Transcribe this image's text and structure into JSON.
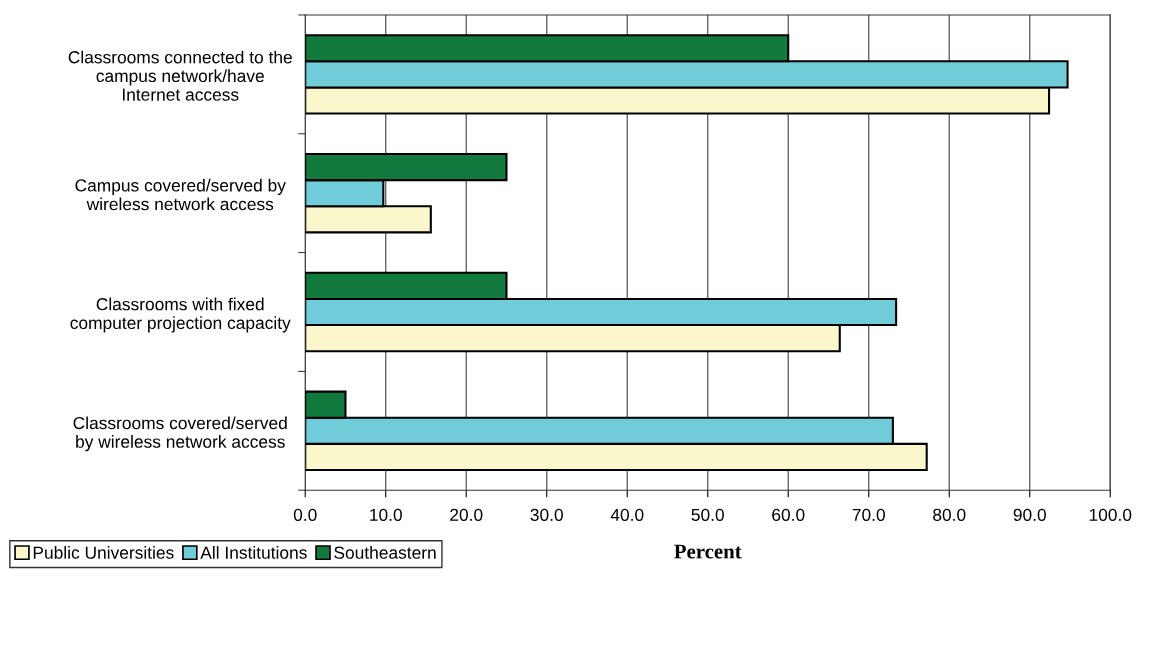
{
  "chart_data": {
    "type": "bar",
    "orientation": "horizontal",
    "categories": [
      "Classrooms connected to the\ncampus network/have\nInternet access",
      "Campus covered/served by\nwireless network access",
      "Classrooms with fixed\ncomputer projection capacity",
      "Classrooms covered/served\nby wireless network access"
    ],
    "series": [
      {
        "name": "Public Universities",
        "color": "#fbf7cc",
        "values": [
          92.4,
          15.6,
          66.4,
          77.2
        ]
      },
      {
        "name": "All Institutions",
        "color": "#70ccd9",
        "values": [
          94.7,
          9.7,
          73.4,
          73.0
        ]
      },
      {
        "name": "Southeastern",
        "color": "#137a3e",
        "values": [
          60,
          25,
          25,
          5
        ]
      }
    ],
    "xlabel": "Percent",
    "xlim": [
      0,
      100
    ],
    "xticks": [
      {
        "value": 0,
        "label": "0.0"
      },
      {
        "value": 10,
        "label": "10.0"
      },
      {
        "value": 20,
        "label": "20.0"
      },
      {
        "value": 30,
        "label": "30.0"
      },
      {
        "value": 40,
        "label": "40.0"
      },
      {
        "value": 50,
        "label": "50.0"
      },
      {
        "value": 60,
        "label": "60.0"
      },
      {
        "value": 70,
        "label": "70.0"
      },
      {
        "value": 80,
        "label": "80.0"
      },
      {
        "value": 90,
        "label": "90.0"
      },
      {
        "value": 100,
        "label": "100.0"
      }
    ],
    "grid": "x",
    "legend": "bottom left"
  }
}
